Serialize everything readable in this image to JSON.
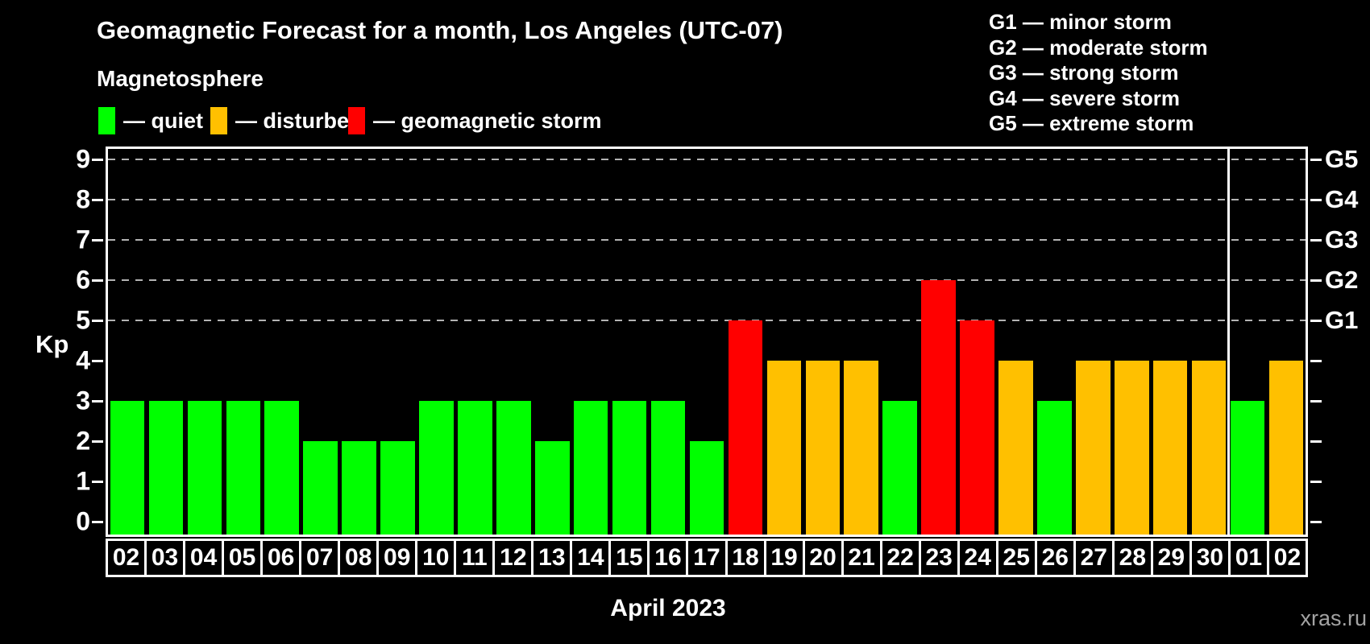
{
  "title": "Geomagnetic Forecast for a month, Los Angeles (UTC-07)",
  "subtitle": "Magnetosphere",
  "legend": {
    "items": [
      {
        "label": "— quiet",
        "status": "quiet",
        "color": "#00ff00"
      },
      {
        "label": "— disturbed",
        "status": "disturbed",
        "color": "#ffc000"
      },
      {
        "label": "— geomagnetic storm",
        "status": "storm",
        "color": "#ff0000"
      }
    ]
  },
  "storm_scale": [
    "G1 — minor storm",
    "G2 — moderate storm",
    "G3 — strong storm",
    "G4 — severe storm",
    "G5 — extreme storm"
  ],
  "chart_data": {
    "type": "bar",
    "title": "Geomagnetic Forecast for a month, Los Angeles (UTC-07)",
    "ylabel": "Kp",
    "xlabel_caption": "April 2023",
    "ylim": [
      0,
      9
    ],
    "yticks": [
      0,
      1,
      2,
      3,
      4,
      5,
      6,
      7,
      8,
      9
    ],
    "gridlines_at": [
      5,
      6,
      7,
      8,
      9
    ],
    "grid": "dashed, only at storm levels 5-9",
    "legend_position": "top",
    "right_axis": [
      {
        "value": 5,
        "label": "G1"
      },
      {
        "value": 6,
        "label": "G2"
      },
      {
        "value": 7,
        "label": "G3"
      },
      {
        "value": 8,
        "label": "G4"
      },
      {
        "value": 9,
        "label": "G5"
      }
    ],
    "month_separator_after_index": 28,
    "status_colors": {
      "quiet": "#00ff00",
      "disturbed": "#ffc000",
      "storm": "#ff0000"
    },
    "bars": [
      {
        "day": "02",
        "kp": 3,
        "status": "quiet"
      },
      {
        "day": "03",
        "kp": 3,
        "status": "quiet"
      },
      {
        "day": "04",
        "kp": 3,
        "status": "quiet"
      },
      {
        "day": "05",
        "kp": 3,
        "status": "quiet"
      },
      {
        "day": "06",
        "kp": 3,
        "status": "quiet"
      },
      {
        "day": "07",
        "kp": 2,
        "status": "quiet"
      },
      {
        "day": "08",
        "kp": 2,
        "status": "quiet"
      },
      {
        "day": "09",
        "kp": 2,
        "status": "quiet"
      },
      {
        "day": "10",
        "kp": 3,
        "status": "quiet"
      },
      {
        "day": "11",
        "kp": 3,
        "status": "quiet"
      },
      {
        "day": "12",
        "kp": 3,
        "status": "quiet"
      },
      {
        "day": "13",
        "kp": 2,
        "status": "quiet"
      },
      {
        "day": "14",
        "kp": 3,
        "status": "quiet"
      },
      {
        "day": "15",
        "kp": 3,
        "status": "quiet"
      },
      {
        "day": "16",
        "kp": 3,
        "status": "quiet"
      },
      {
        "day": "17",
        "kp": 2,
        "status": "quiet"
      },
      {
        "day": "18",
        "kp": 5,
        "status": "storm"
      },
      {
        "day": "19",
        "kp": 4,
        "status": "disturbed"
      },
      {
        "day": "20",
        "kp": 4,
        "status": "disturbed"
      },
      {
        "day": "21",
        "kp": 4,
        "status": "disturbed"
      },
      {
        "day": "22",
        "kp": 3,
        "status": "quiet"
      },
      {
        "day": "23",
        "kp": 6,
        "status": "storm"
      },
      {
        "day": "24",
        "kp": 5,
        "status": "storm"
      },
      {
        "day": "25",
        "kp": 4,
        "status": "disturbed"
      },
      {
        "day": "26",
        "kp": 3,
        "status": "quiet"
      },
      {
        "day": "27",
        "kp": 4,
        "status": "disturbed"
      },
      {
        "day": "28",
        "kp": 4,
        "status": "disturbed"
      },
      {
        "day": "29",
        "kp": 4,
        "status": "disturbed"
      },
      {
        "day": "30",
        "kp": 4,
        "status": "disturbed"
      },
      {
        "day": "01",
        "kp": 3,
        "status": "quiet"
      },
      {
        "day": "02",
        "kp": 4,
        "status": "disturbed"
      }
    ]
  },
  "watermark": "xras.ru"
}
